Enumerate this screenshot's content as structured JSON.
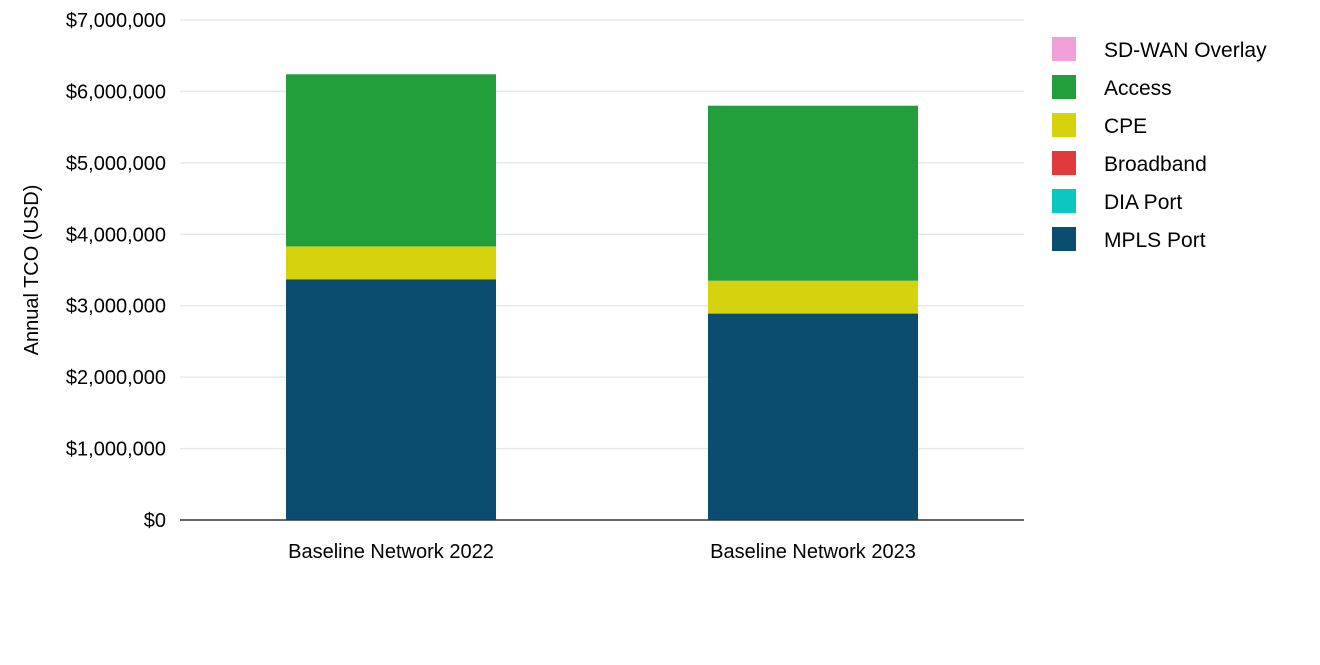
{
  "chart_data": {
    "type": "bar",
    "stacked": true,
    "title": "",
    "xlabel": "",
    "ylabel": "Annual TCO (USD)",
    "ylim": [
      0,
      7000000
    ],
    "yticks": [
      0,
      1000000,
      2000000,
      3000000,
      4000000,
      5000000,
      6000000,
      7000000
    ],
    "ytick_labels": [
      "$0",
      "$1,000,000",
      "$2,000,000",
      "$3,000,000",
      "$4,000,000",
      "$5,000,000",
      "$6,000,000",
      "$7,000,000"
    ],
    "categories": [
      "Baseline Network 2022",
      "Baseline Network 2023"
    ],
    "grid": true,
    "legend_position": "right",
    "series": [
      {
        "name": "MPLS Port",
        "color": "#0a4d6e",
        "values": [
          3370000,
          2890000
        ]
      },
      {
        "name": "DIA Port",
        "color": "#0cc7c0",
        "values": [
          0,
          0
        ]
      },
      {
        "name": "Broadband",
        "color": "#e03a3e",
        "values": [
          0,
          0
        ]
      },
      {
        "name": "CPE",
        "color": "#d6d30e",
        "values": [
          460000,
          460000
        ]
      },
      {
        "name": "Access",
        "color": "#229e3b",
        "values": [
          2410000,
          2450000
        ]
      },
      {
        "name": "SD-WAN Overlay",
        "color": "#f0a0d8",
        "values": [
          0,
          0
        ]
      }
    ],
    "legend_order": [
      "SD-WAN Overlay",
      "Access",
      "CPE",
      "Broadband",
      "DIA Port",
      "MPLS Port"
    ]
  }
}
